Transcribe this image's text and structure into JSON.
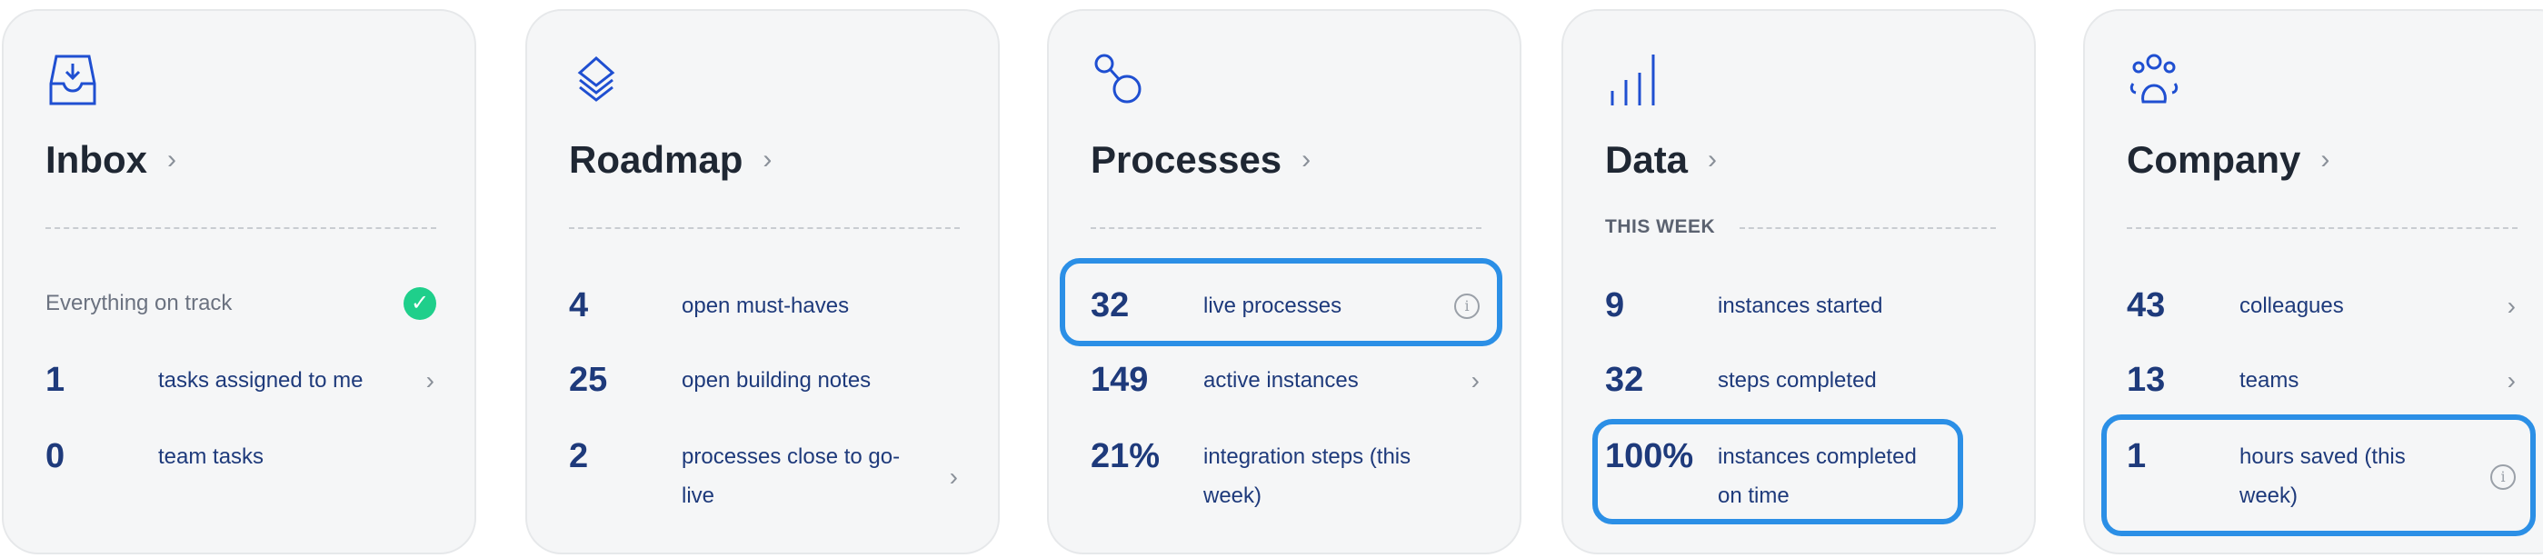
{
  "colors": {
    "accent": "#1f4fd1",
    "number": "#1e3a7b",
    "highlight": "#2b8fe6",
    "success": "#1fcf8b"
  },
  "cards": [
    {
      "title": "Inbox",
      "icon": "inbox-download-icon",
      "status": "Everything on track",
      "rows": [
        {
          "value": "1",
          "label": "tasks assigned to me",
          "chevron": true
        },
        {
          "value": "0",
          "label": "team tasks"
        }
      ]
    },
    {
      "title": "Roadmap",
      "icon": "layers-icon",
      "rows": [
        {
          "value": "4",
          "label": "open must-haves"
        },
        {
          "value": "25",
          "label": "open building notes"
        },
        {
          "value": "2",
          "label": "processes close to go-live",
          "chevron": true
        }
      ]
    },
    {
      "title": "Processes",
      "icon": "process-nodes-icon",
      "rows": [
        {
          "value": "32",
          "label": "live processes",
          "info": true,
          "highlighted": true
        },
        {
          "value": "149",
          "label": "active instances",
          "chevron": true
        },
        {
          "value": "21%",
          "label": "integration steps (this week)"
        }
      ]
    },
    {
      "title": "Data",
      "icon": "bar-chart-icon",
      "subheader": "THIS WEEK",
      "rows": [
        {
          "value": "9",
          "label": "instances started"
        },
        {
          "value": "32",
          "label": "steps completed"
        },
        {
          "value": "100%",
          "label": "instances completed on time",
          "highlighted": true
        }
      ]
    },
    {
      "title": "Company",
      "icon": "people-group-icon",
      "rows": [
        {
          "value": "43",
          "label": "colleagues",
          "chevron": true
        },
        {
          "value": "13",
          "label": "teams",
          "chevron": true
        },
        {
          "value": "1",
          "label": "hours saved (this week)",
          "info": true,
          "highlighted": true
        }
      ]
    }
  ]
}
